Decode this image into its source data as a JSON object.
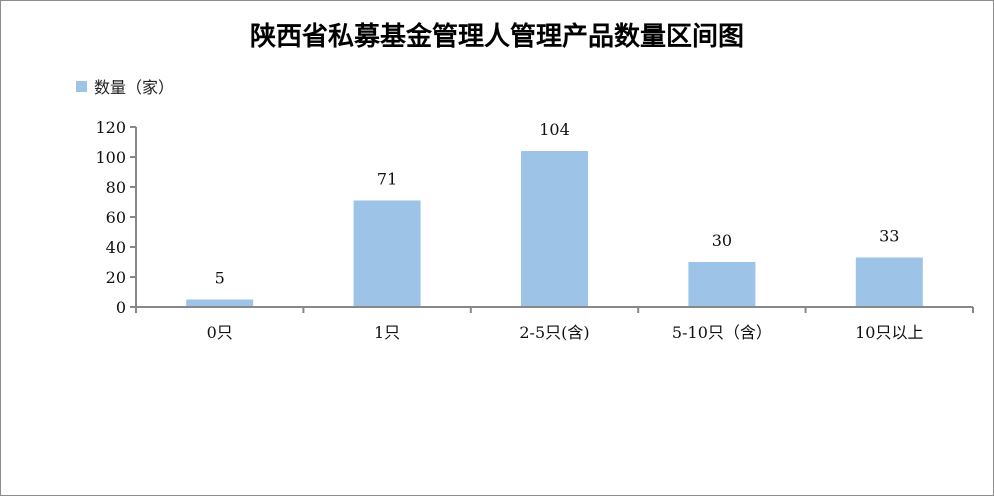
{
  "chart_data": {
    "type": "bar",
    "title": "陕西省私募基金管理人管理产品数量区间图",
    "categories": [
      "0只",
      "1只",
      "2-5只(含)",
      "5-10只（含）",
      "10只以上"
    ],
    "series": [
      {
        "name": "数量（家）",
        "values": [
          5,
          71,
          104,
          30,
          33
        ],
        "color": "#9dc3e6"
      }
    ],
    "ylim": [
      0,
      120
    ],
    "yticks": [
      0,
      20,
      40,
      60,
      80,
      100,
      120
    ],
    "grid": false,
    "legend": "top-left",
    "data_labels": true,
    "xlabel": "",
    "ylabel": ""
  }
}
